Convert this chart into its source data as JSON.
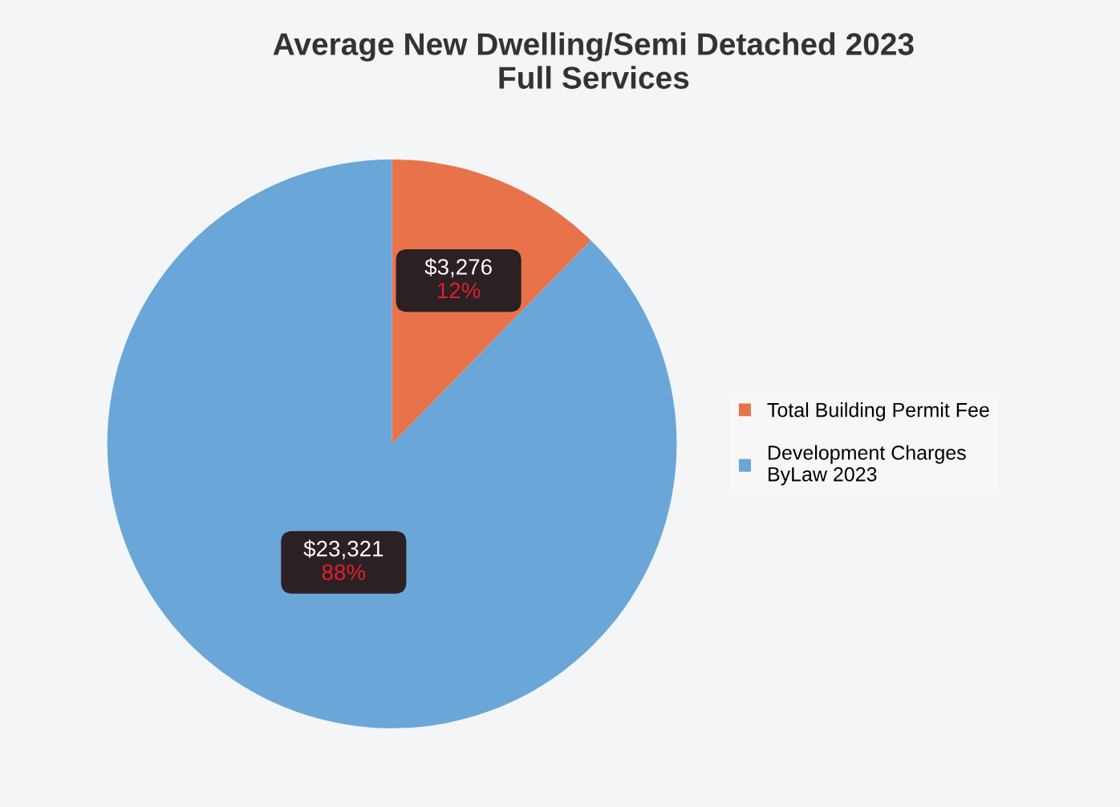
{
  "chart_data": {
    "type": "pie",
    "title": "Average New Dwelling/Semi Detached 2023\nFull Services",
    "categories": [
      "Total Building Permit Fee",
      "Development Charges\nByLaw 2023"
    ],
    "values": [
      3276,
      23321
    ],
    "colors": [
      "#e8734a",
      "#6aa7d8"
    ],
    "value_labels": [
      "$3,276\n12%",
      "$23,321\n88%"
    ],
    "legend": "right"
  }
}
